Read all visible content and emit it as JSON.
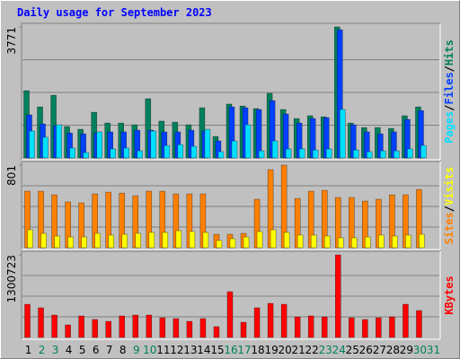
{
  "chart_data": [
    {
      "type": "bar",
      "title": "Daily usage for September 2023",
      "legend_separator": "/",
      "ylim": [
        0,
        3771
      ],
      "yticks": [
        3771
      ],
      "series": [
        {
          "name": "Hits",
          "color": "#00805c",
          "values": [
            1935,
            1470,
            1805,
            905,
            825,
            1315,
            1005,
            1005,
            955,
            1705,
            1060,
            1030,
            955,
            1445,
            620,
            1550,
            1495,
            1420,
            1860,
            1395,
            1135,
            1215,
            1185,
            3771,
            1005,
            875,
            875,
            850,
            1215,
            1470,
            null
          ]
        },
        {
          "name": "Files",
          "color": "#0040ff",
          "values": [
            1240,
            980,
            930,
            720,
            695,
            720,
            750,
            750,
            800,
            800,
            750,
            750,
            800,
            775,
            490,
            1470,
            1445,
            1395,
            1650,
            1265,
            1005,
            1135,
            1160,
            3690,
            955,
            750,
            695,
            750,
            1110,
            1365,
            null
          ]
        },
        {
          "name": "Pages",
          "color": "#00e0ff",
          "values": [
            775,
            595,
            955,
            285,
            155,
            750,
            260,
            285,
            205,
            775,
            360,
            385,
            335,
            825,
            180,
            490,
            955,
            205,
            490,
            260,
            260,
            230,
            260,
            1395,
            230,
            180,
            205,
            205,
            260,
            360,
            null
          ]
        }
      ]
    },
    {
      "type": "bar",
      "ylim": [
        0,
        801
      ],
      "yticks": [
        801
      ],
      "series": [
        {
          "name": "Visits",
          "color": "#ffff00",
          "values": [
            174,
            139,
            113,
            104,
            104,
            139,
            122,
            130,
            139,
            148,
            148,
            165,
            157,
            148,
            70,
            87,
            104,
            157,
            174,
            148,
            122,
            122,
            113,
            96,
            96,
            104,
            122,
            113,
            122,
            130,
            null
          ]
        },
        {
          "name": "Sites",
          "color": "#ff8000",
          "values": [
            548,
            548,
            513,
            444,
            435,
            522,
            539,
            530,
            504,
            548,
            548,
            522,
            522,
            522,
            130,
            130,
            139,
            470,
            757,
            801,
            478,
            548,
            557,
            487,
            487,
            452,
            470,
            513,
            513,
            565,
            null
          ]
        }
      ]
    },
    {
      "type": "bar",
      "ylim": [
        0,
        1300723
      ],
      "yticks": [
        1300723
      ],
      "categories": [
        "1",
        "2",
        "3",
        "4",
        "5",
        "6",
        "7",
        "8",
        "9",
        "10",
        "11",
        "12",
        "13",
        "14",
        "15",
        "16",
        "17",
        "18",
        "19",
        "20",
        "21",
        "22",
        "23",
        "24",
        "25",
        "26",
        "27",
        "28",
        "29",
        "30",
        "31"
      ],
      "category_colors": [
        "#000000",
        "#00805c",
        "#00805c",
        "#000000",
        "#000000",
        "#000000",
        "#000000",
        "#000000",
        "#00805c",
        "#00805c",
        "#000000",
        "#000000",
        "#000000",
        "#000000",
        "#000000",
        "#00805c",
        "#00805c",
        "#000000",
        "#000000",
        "#000000",
        "#000000",
        "#000000",
        "#00805c",
        "#00805c",
        "#000000",
        "#000000",
        "#000000",
        "#000000",
        "#000000",
        "#00805c",
        "#00805c"
      ],
      "series": [
        {
          "name": "KBytes",
          "color": "#ff0000",
          "values": [
            523000,
            467000,
            353000,
            198000,
            339000,
            283000,
            254000,
            339000,
            353000,
            353000,
            311000,
            297000,
            254000,
            297000,
            170000,
            721000,
            240000,
            467000,
            537000,
            523000,
            325000,
            339000,
            325000,
            1300723,
            311000,
            283000,
            311000,
            325000,
            523000,
            424000,
            null
          ]
        }
      ]
    }
  ]
}
